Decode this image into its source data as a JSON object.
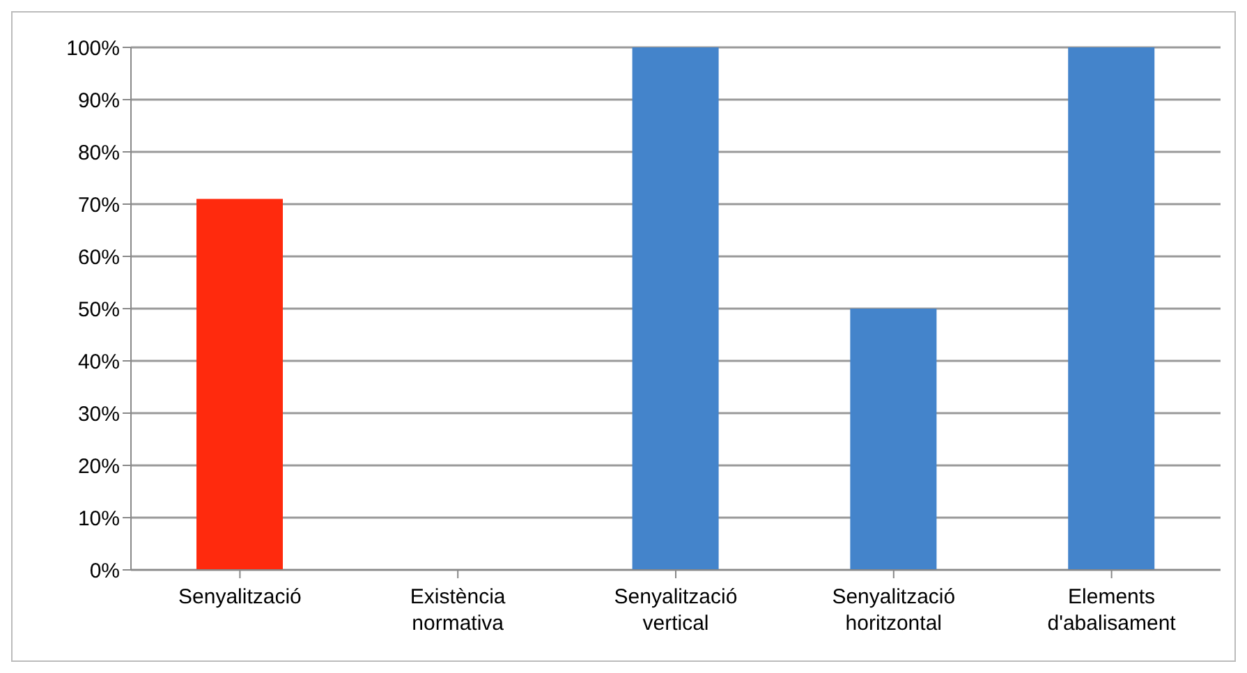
{
  "chart_data": {
    "type": "bar",
    "categories": [
      "Senyalització",
      "Existència normativa",
      "Senyalització vertical",
      "Senyalització horitzontal",
      "Elements d'abalisament"
    ],
    "values": [
      71,
      0,
      100,
      50,
      100
    ],
    "colors": [
      "#ff2a0d",
      "#4484cb",
      "#4484cb",
      "#4484cb",
      "#4484cb"
    ],
    "ylim": [
      0,
      100
    ],
    "yticks": [
      {
        "value": 0,
        "label": "0%"
      },
      {
        "value": 10,
        "label": "10%"
      },
      {
        "value": 20,
        "label": "20%"
      },
      {
        "value": 30,
        "label": "30%"
      },
      {
        "value": 40,
        "label": "40%"
      },
      {
        "value": 50,
        "label": "50%"
      },
      {
        "value": 60,
        "label": "60%"
      },
      {
        "value": 70,
        "label": "70%"
      },
      {
        "value": 80,
        "label": "80%"
      },
      {
        "value": 90,
        "label": "90%"
      },
      {
        "value": 100,
        "label": "100%"
      }
    ],
    "grid": "y"
  }
}
